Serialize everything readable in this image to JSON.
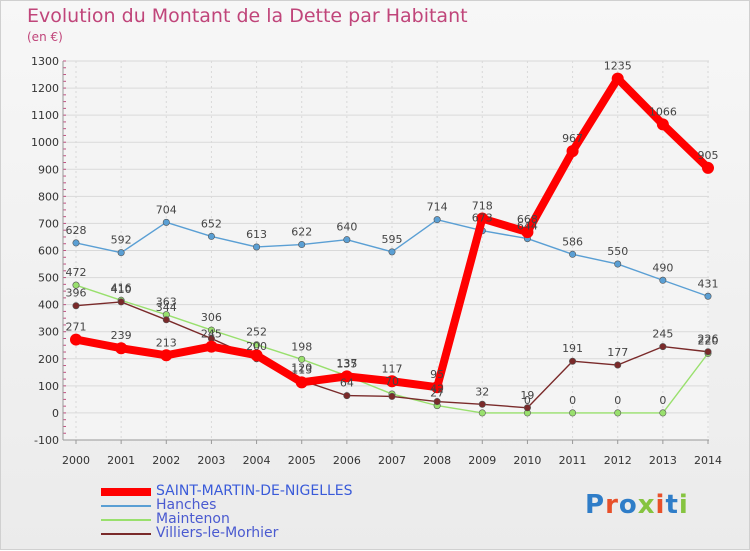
{
  "chart_data": {
    "type": "line",
    "title": "Evolution du Montant de la Dette par Habitant",
    "unit_label": "(en €)",
    "x": [
      "2000",
      "2001",
      "2002",
      "2003",
      "2004",
      "2005",
      "2006",
      "2007",
      "2008",
      "2009",
      "2010",
      "2011",
      "2012",
      "2013",
      "2014"
    ],
    "ylim": [
      -100,
      1300
    ],
    "yticks": [
      -100,
      0,
      100,
      200,
      300,
      400,
      500,
      600,
      700,
      800,
      900,
      1000,
      1100,
      1200,
      1300
    ],
    "grid": true,
    "legend_position": "bottom-left",
    "series": [
      {
        "name": "SAINT-MARTIN-DE-NIGELLES",
        "color": "#ff0000",
        "values": [
          271,
          239,
          213,
          245,
          213,
          113,
          135,
          117,
          95,
          718,
          668,
          967,
          1235,
          1066,
          905
        ],
        "labels": [
          "271",
          "239",
          "213",
          "245",
          "",
          "113",
          "135",
          "117",
          "95",
          "718",
          "668",
          "967",
          "1235",
          "1066",
          "905"
        ]
      },
      {
        "name": "Hanches",
        "color": "#5a9fd4",
        "values": [
          628,
          592,
          704,
          652,
          613,
          622,
          640,
          595,
          714,
          673,
          644,
          586,
          550,
          490,
          431
        ],
        "labels": [
          "628",
          "592",
          "704",
          "652",
          "613",
          "622",
          "640",
          "595",
          "714",
          "673",
          "644",
          "586",
          "550",
          "490",
          "431"
        ]
      },
      {
        "name": "Maintenon",
        "color": "#99e06d",
        "values": [
          472,
          416,
          363,
          306,
          252,
          198,
          137,
          70,
          27,
          0,
          0,
          0,
          0,
          0,
          220
        ],
        "labels": [
          "472",
          "416",
          "363",
          "306",
          "252",
          "198",
          "137",
          "70",
          "27",
          "",
          "0",
          "0",
          "0",
          "0",
          "220"
        ]
      },
      {
        "name": "Villiers-le-Morhier",
        "color": "#7a2a2a",
        "values": [
          396,
          410,
          344,
          275,
          200,
          120,
          64,
          61,
          42,
          32,
          19,
          191,
          177,
          245,
          226
        ],
        "labels": [
          "396",
          "410",
          "344",
          "",
          "200",
          "120",
          "64",
          "",
          "42",
          "32",
          "19",
          "191",
          "177",
          "245",
          "226"
        ]
      }
    ]
  },
  "logo": {
    "text": "Proxiti",
    "colors": [
      "#2f7dc8",
      "#e8502a",
      "#2f7dc8",
      "#86c440",
      "#e8502a",
      "#2f7dc8",
      "#86c440"
    ]
  }
}
